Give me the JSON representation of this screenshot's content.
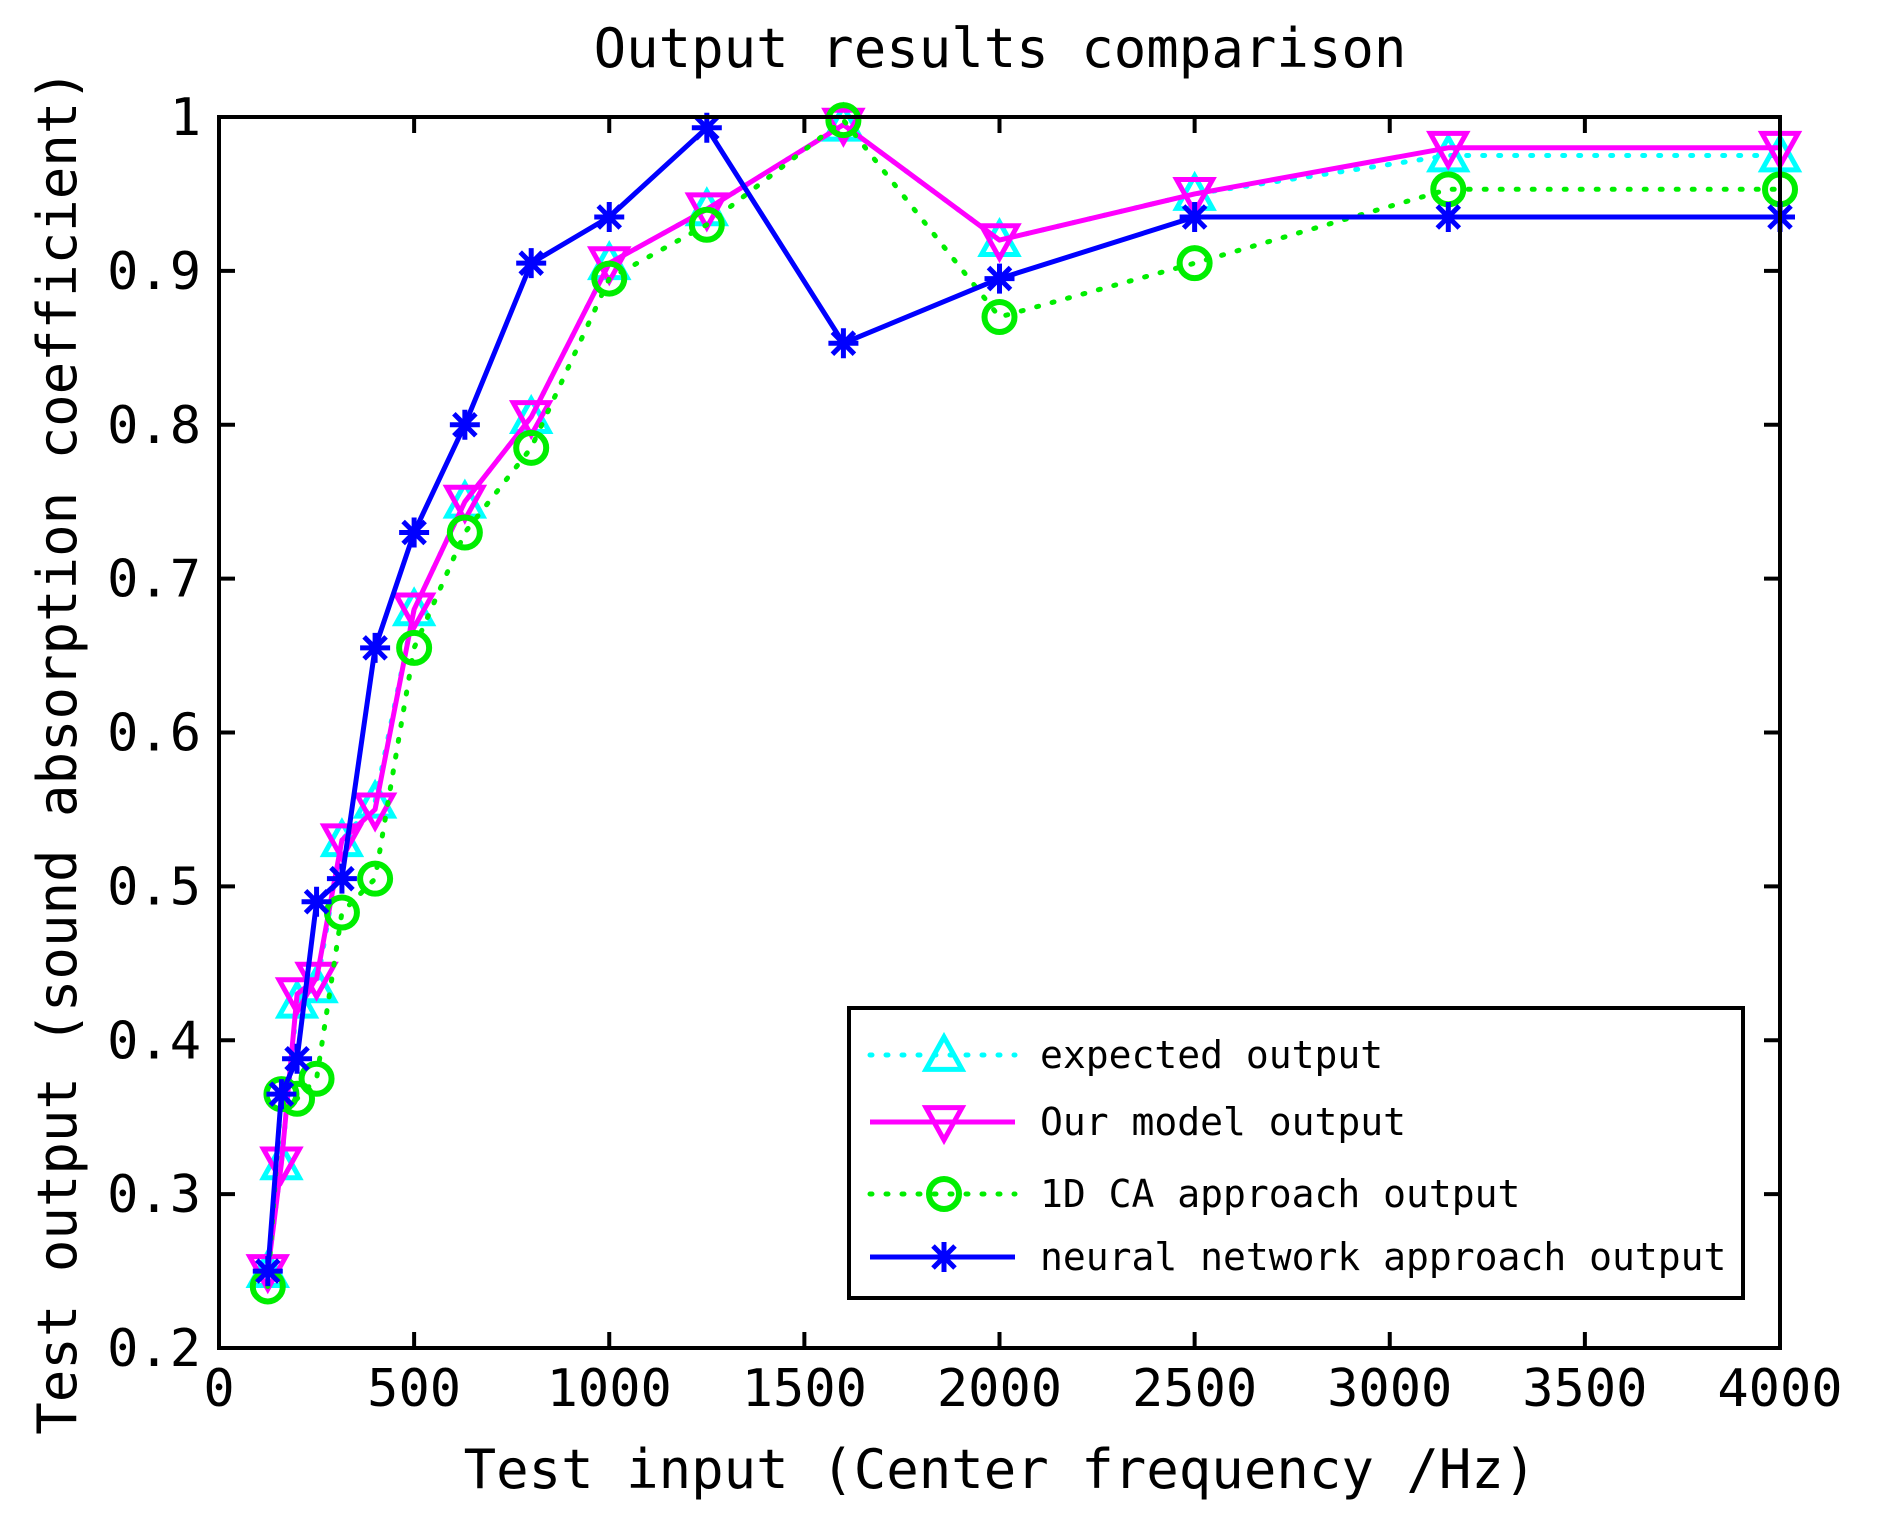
{
  "chart_data": {
    "type": "line",
    "title": "Output results comparison",
    "xlabel": "Test input (Center frequency /Hz)",
    "ylabel": "Test output (sound absorption coefficient)",
    "xlim": [
      0,
      4000
    ],
    "ylim": [
      0.2,
      1
    ],
    "xticks": [
      0,
      500,
      1000,
      1500,
      2000,
      2500,
      3000,
      3500,
      4000
    ],
    "xtick_labels": [
      "0",
      "500",
      "1000",
      "1500",
      "2000",
      "2500",
      "3000",
      "3500",
      "4000"
    ],
    "yticks": [
      0.2,
      0.3,
      0.4,
      0.5,
      0.6,
      0.7,
      0.8,
      0.9,
      1
    ],
    "ytick_labels": [
      "0.2",
      "0.3",
      "0.4",
      "0.5",
      "0.6",
      "0.7",
      "0.8",
      "0.9",
      "1"
    ],
    "grid": false,
    "legend_position": "bottom-right",
    "series": [
      {
        "name": "expected output",
        "color": "#00ffff",
        "line_style": "dotted",
        "marker": "triangle-up",
        "x": [
          125,
          160,
          200,
          250,
          315,
          400,
          500,
          630,
          800,
          1000,
          1250,
          1600,
          2000,
          2500,
          3150,
          4000
        ],
        "y": [
          0.25,
          0.32,
          0.425,
          0.435,
          0.53,
          0.555,
          0.68,
          0.75,
          0.805,
          0.905,
          0.94,
          0.995,
          0.92,
          0.95,
          0.975,
          0.975
        ]
      },
      {
        "name": "Our model output",
        "color": "#ff00ff",
        "line_style": "solid",
        "marker": "triangle-down",
        "x": [
          125,
          160,
          200,
          250,
          315,
          400,
          500,
          630,
          800,
          1000,
          1250,
          1600,
          2000,
          2500,
          3150,
          4000
        ],
        "y": [
          0.25,
          0.32,
          0.43,
          0.44,
          0.53,
          0.55,
          0.68,
          0.75,
          0.805,
          0.905,
          0.94,
          0.995,
          0.92,
          0.95,
          0.98,
          0.98
        ]
      },
      {
        "name": "1D CA approach output",
        "color": "#00ee00",
        "line_style": "dotted",
        "marker": "circle",
        "x": [
          125,
          160,
          200,
          250,
          315,
          400,
          500,
          630,
          800,
          1000,
          1250,
          1600,
          2000,
          2500,
          3150,
          4000
        ],
        "y": [
          0.24,
          0.365,
          0.362,
          0.375,
          0.483,
          0.505,
          0.655,
          0.73,
          0.785,
          0.895,
          0.93,
          0.998,
          0.87,
          0.905,
          0.953,
          0.953
        ]
      },
      {
        "name": "neural network approach output",
        "color": "#0000ff",
        "line_style": "solid",
        "marker": "star",
        "x": [
          125,
          160,
          200,
          250,
          315,
          400,
          500,
          630,
          800,
          1000,
          1250,
          1600,
          2000,
          2500,
          3150,
          4000
        ],
        "y": [
          0.25,
          0.365,
          0.388,
          0.49,
          0.505,
          0.655,
          0.73,
          0.8,
          0.905,
          0.935,
          0.993,
          0.853,
          0.895,
          0.935,
          0.935,
          0.935
        ]
      }
    ]
  }
}
